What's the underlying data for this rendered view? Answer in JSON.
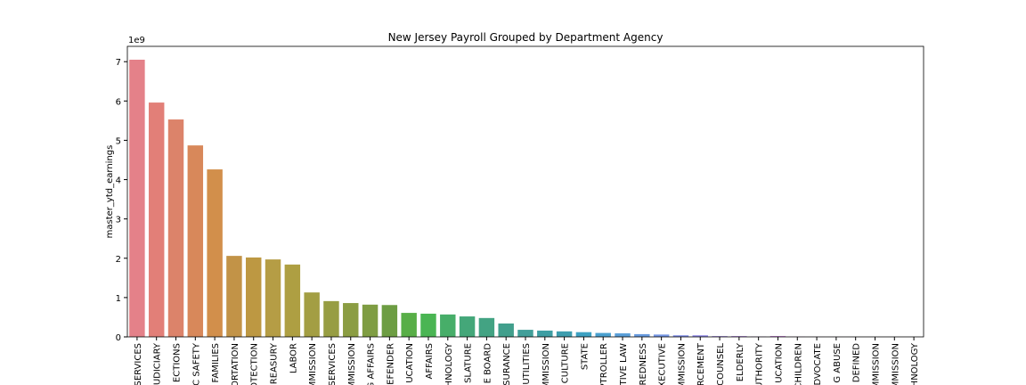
{
  "chart_data": {
    "type": "bar",
    "title": "New Jersey Payroll Grouped by Department Agency",
    "y_label": "master_ytd_earnings",
    "y_offset_label": "1e9",
    "categories": [
      "SERVICES",
      "UDICIARY",
      "ECTIONS",
      "C SAFETY",
      "FAMILIES",
      "ORTATION",
      "OTECTION",
      "REASURY",
      "LABOR",
      "MMISSION",
      "SERVICES",
      "MMISSION",
      "G AFFAIRS",
      "EFENDER",
      "UCATION",
      "AFFAIRS",
      "HNOLOGY",
      "SLATURE",
      "E BOARD",
      "SURANCE",
      "UTILITIES",
      "MMISSION",
      "CULTURE",
      "STATE",
      "PTROLLER",
      "TIVE LAW",
      "REDNESS",
      "XECUTIVE",
      "MMISSION",
      "RCEMENT",
      "COUNSEL",
      "ELDERLY",
      "UTHORITY",
      "UCATION",
      "CHILDREN",
      "DVOCATE",
      "G ABUSE",
      "DEFINED",
      "MMISSION",
      "MMISSION",
      "HNOLOGY"
    ],
    "values": [
      7.05,
      5.96,
      5.53,
      4.87,
      4.26,
      2.06,
      2.02,
      1.97,
      1.84,
      1.13,
      0.91,
      0.86,
      0.82,
      0.81,
      0.61,
      0.59,
      0.57,
      0.52,
      0.48,
      0.34,
      0.18,
      0.16,
      0.14,
      0.12,
      0.1,
      0.09,
      0.07,
      0.06,
      0.04,
      0.04,
      0.02,
      0.02,
      0.01,
      0.02,
      0.005,
      0.003,
      0.002,
      0.001,
      0.001,
      0.001,
      0.0005
    ],
    "colors": [
      "hsl(355,65%,70%)",
      "hsl(4,65%,68%)",
      "hsl(13,62%,64%)",
      "hsl(22,62%,60%)",
      "hsl(30,60%,56%)",
      "hsl(37,50%,52%)",
      "hsl(42,48%,50%)",
      "hsl(47,45%,49%)",
      "hsl(52,45%,47%)",
      "hsl(57,42%,45%)",
      "hsl(64,40%,44%)",
      "hsl(72,40%,44%)",
      "hsl(80,40%,44%)",
      "hsl(92,40%,44%)",
      "hsl(110,42%,48%)",
      "hsl(125,42%,50%)",
      "hsl(140,42%,48%)",
      "hsl(152,42%,46%)",
      "hsl(160,42%,45%)",
      "hsl(168,42%,44%)",
      "hsl(176,42%,44%)",
      "hsl(183,45%,44%)",
      "hsl(189,48%,46%)",
      "hsl(195,52%,50%)",
      "hsl(201,58%,55%)",
      "hsl(207,62%,60%)",
      "hsl(214,65%,64%)",
      "hsl(222,68%,68%)",
      "hsl(232,68%,70%)",
      "hsl(244,66%,72%)",
      "hsl(256,64%,72%)",
      "hsl(268,62%,70%)",
      "hsl(278,60%,68%)",
      "hsl(287,58%,66%)",
      "hsl(295,58%,66%)",
      "hsl(303,58%,66%)",
      "hsl(311,60%,67%)",
      "hsl(319,62%,68%)",
      "hsl(327,64%,69%)",
      "hsl(336,65%,70%)",
      "hsl(345,65%,70%)"
    ],
    "ylim": [
      0,
      7.39
    ],
    "yticks": [
      0,
      1,
      2,
      3,
      4,
      5,
      6,
      7
    ]
  }
}
